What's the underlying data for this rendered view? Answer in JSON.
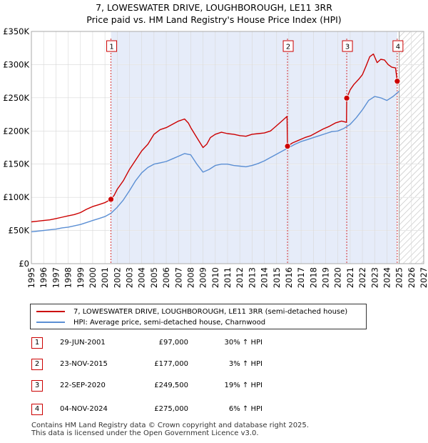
{
  "title_line1": "7, LOWESWATER DRIVE, LOUGHBOROUGH, LE11 3RR",
  "title_line2": "Price paid vs. HM Land Registry's House Price Index (HPI)",
  "chart_data": {
    "type": "line",
    "xlim": [
      1995,
      2027
    ],
    "ylim": [
      0,
      350000
    ],
    "yticks": [
      {
        "value": 0,
        "label": "£0"
      },
      {
        "value": 50000,
        "label": "£50K"
      },
      {
        "value": 100000,
        "label": "£100K"
      },
      {
        "value": 150000,
        "label": "£150K"
      },
      {
        "value": 200000,
        "label": "£200K"
      },
      {
        "value": 250000,
        "label": "£250K"
      },
      {
        "value": 300000,
        "label": "£300K"
      },
      {
        "value": 350000,
        "label": "£350K"
      }
    ],
    "xticks": [
      1995,
      1996,
      1997,
      1998,
      1999,
      2000,
      2001,
      2002,
      2003,
      2004,
      2005,
      2006,
      2007,
      2008,
      2009,
      2010,
      2011,
      2012,
      2013,
      2014,
      2015,
      2016,
      2017,
      2018,
      2019,
      2020,
      2021,
      2022,
      2023,
      2024,
      2025,
      2026,
      2027
    ],
    "forecast_start": 2025.0,
    "shaded_region": [
      2001.49,
      2024.84
    ],
    "series": [
      {
        "name": "7, LOWESWATER DRIVE, LOUGHBOROUGH, LE11 3RR (semi-detached house)",
        "color": "#cc0000",
        "x": [
          1995.0,
          1995.5,
          1996.0,
          1996.5,
          1997.0,
          1997.5,
          1998.0,
          1998.5,
          1999.0,
          1999.5,
          2000.0,
          2000.5,
          2001.0,
          2001.49,
          2001.75,
          2002.0,
          2002.5,
          2003.0,
          2003.5,
          2004.0,
          2004.5,
          2005.0,
          2005.5,
          2006.0,
          2006.5,
          2007.0,
          2007.5,
          2007.8,
          2008.0,
          2008.5,
          2009.0,
          2009.3,
          2009.6,
          2010.0,
          2010.5,
          2011.0,
          2011.5,
          2012.0,
          2012.5,
          2013.0,
          2013.5,
          2014.0,
          2014.5,
          2015.0,
          2015.5,
          2015.85,
          2015.89,
          2016.3,
          2016.8,
          2017.3,
          2017.8,
          2018.3,
          2018.8,
          2019.3,
          2019.8,
          2020.3,
          2020.7,
          2020.72,
          2021.0,
          2021.3,
          2021.7,
          2022.0,
          2022.3,
          2022.6,
          2022.9,
          2023.2,
          2023.5,
          2023.8,
          2024.1,
          2024.4,
          2024.7,
          2024.84
        ],
        "y": [
          63000,
          64000,
          65000,
          66000,
          68000,
          70000,
          72000,
          74000,
          77000,
          82000,
          86000,
          89000,
          92000,
          97000,
          103000,
          112000,
          125000,
          142000,
          156000,
          170000,
          180000,
          195000,
          202000,
          205000,
          210000,
          215000,
          218000,
          212000,
          205000,
          190000,
          175000,
          180000,
          190000,
          195000,
          198000,
          196000,
          195000,
          193000,
          192000,
          195000,
          196000,
          197000,
          200000,
          208000,
          216000,
          222000,
          177000,
          182000,
          186000,
          190000,
          193000,
          198000,
          203000,
          207000,
          212000,
          215000,
          213000,
          249500,
          262000,
          270000,
          278000,
          285000,
          298000,
          312000,
          316000,
          303000,
          308000,
          307000,
          300000,
          296000,
          295000,
          275000
        ]
      },
      {
        "name": "HPI: Average price, semi-detached house, Charnwood",
        "color": "#5b8fd4",
        "x": [
          1995.0,
          1995.5,
          1996.0,
          1996.5,
          1997.0,
          1997.5,
          1998.0,
          1998.5,
          1999.0,
          1999.5,
          2000.0,
          2000.5,
          2001.0,
          2001.5,
          2002.0,
          2002.5,
          2003.0,
          2003.5,
          2004.0,
          2004.5,
          2005.0,
          2005.5,
          2006.0,
          2006.5,
          2007.0,
          2007.5,
          2008.0,
          2008.5,
          2009.0,
          2009.5,
          2010.0,
          2010.5,
          2011.0,
          2011.5,
          2012.0,
          2012.5,
          2013.0,
          2013.5,
          2014.0,
          2014.5,
          2015.0,
          2015.5,
          2016.0,
          2016.5,
          2017.0,
          2017.5,
          2018.0,
          2018.5,
          2019.0,
          2019.5,
          2020.0,
          2020.5,
          2021.0,
          2021.5,
          2022.0,
          2022.5,
          2023.0,
          2023.5,
          2024.0,
          2024.5,
          2025.0
        ],
        "y": [
          48000,
          49000,
          50000,
          51000,
          52000,
          54000,
          55000,
          57000,
          59000,
          62000,
          65000,
          68000,
          71000,
          76000,
          85000,
          96000,
          110000,
          125000,
          137000,
          145000,
          150000,
          152000,
          154000,
          158000,
          162000,
          166000,
          164000,
          150000,
          138000,
          142000,
          148000,
          150000,
          150000,
          148000,
          147000,
          146000,
          148000,
          151000,
          155000,
          160000,
          165000,
          170000,
          175000,
          180000,
          184000,
          187000,
          190000,
          193000,
          196000,
          199000,
          200000,
          204000,
          210000,
          220000,
          232000,
          246000,
          252000,
          250000,
          246000,
          252000,
          260000
        ]
      }
    ],
    "sales": [
      {
        "n": "1",
        "x": 2001.49,
        "price": 97000
      },
      {
        "n": "2",
        "x": 2015.89,
        "price": 177000
      },
      {
        "n": "3",
        "x": 2020.72,
        "price": 249500
      },
      {
        "n": "4",
        "x": 2024.84,
        "price": 275000
      }
    ]
  },
  "legend": {
    "property": "7, LOWESWATER DRIVE, LOUGHBOROUGH, LE11 3RR (semi-detached house)",
    "hpi": "HPI: Average price, semi-detached house, Charnwood"
  },
  "transactions": [
    {
      "n": "1",
      "date": "29-JUN-2001",
      "price": "£97,000",
      "hpi": "30% ↑ HPI"
    },
    {
      "n": "2",
      "date": "23-NOV-2015",
      "price": "£177,000",
      "hpi": "3% ↑ HPI"
    },
    {
      "n": "3",
      "date": "22-SEP-2020",
      "price": "£249,500",
      "hpi": "19% ↑ HPI"
    },
    {
      "n": "4",
      "date": "04-NOV-2024",
      "price": "£275,000",
      "hpi": "6% ↑ HPI"
    }
  ],
  "footer_line1": "Contains HM Land Registry data © Crown copyright and database right 2025.",
  "footer_line2": "This data is licensed under the Open Government Licence v3.0."
}
